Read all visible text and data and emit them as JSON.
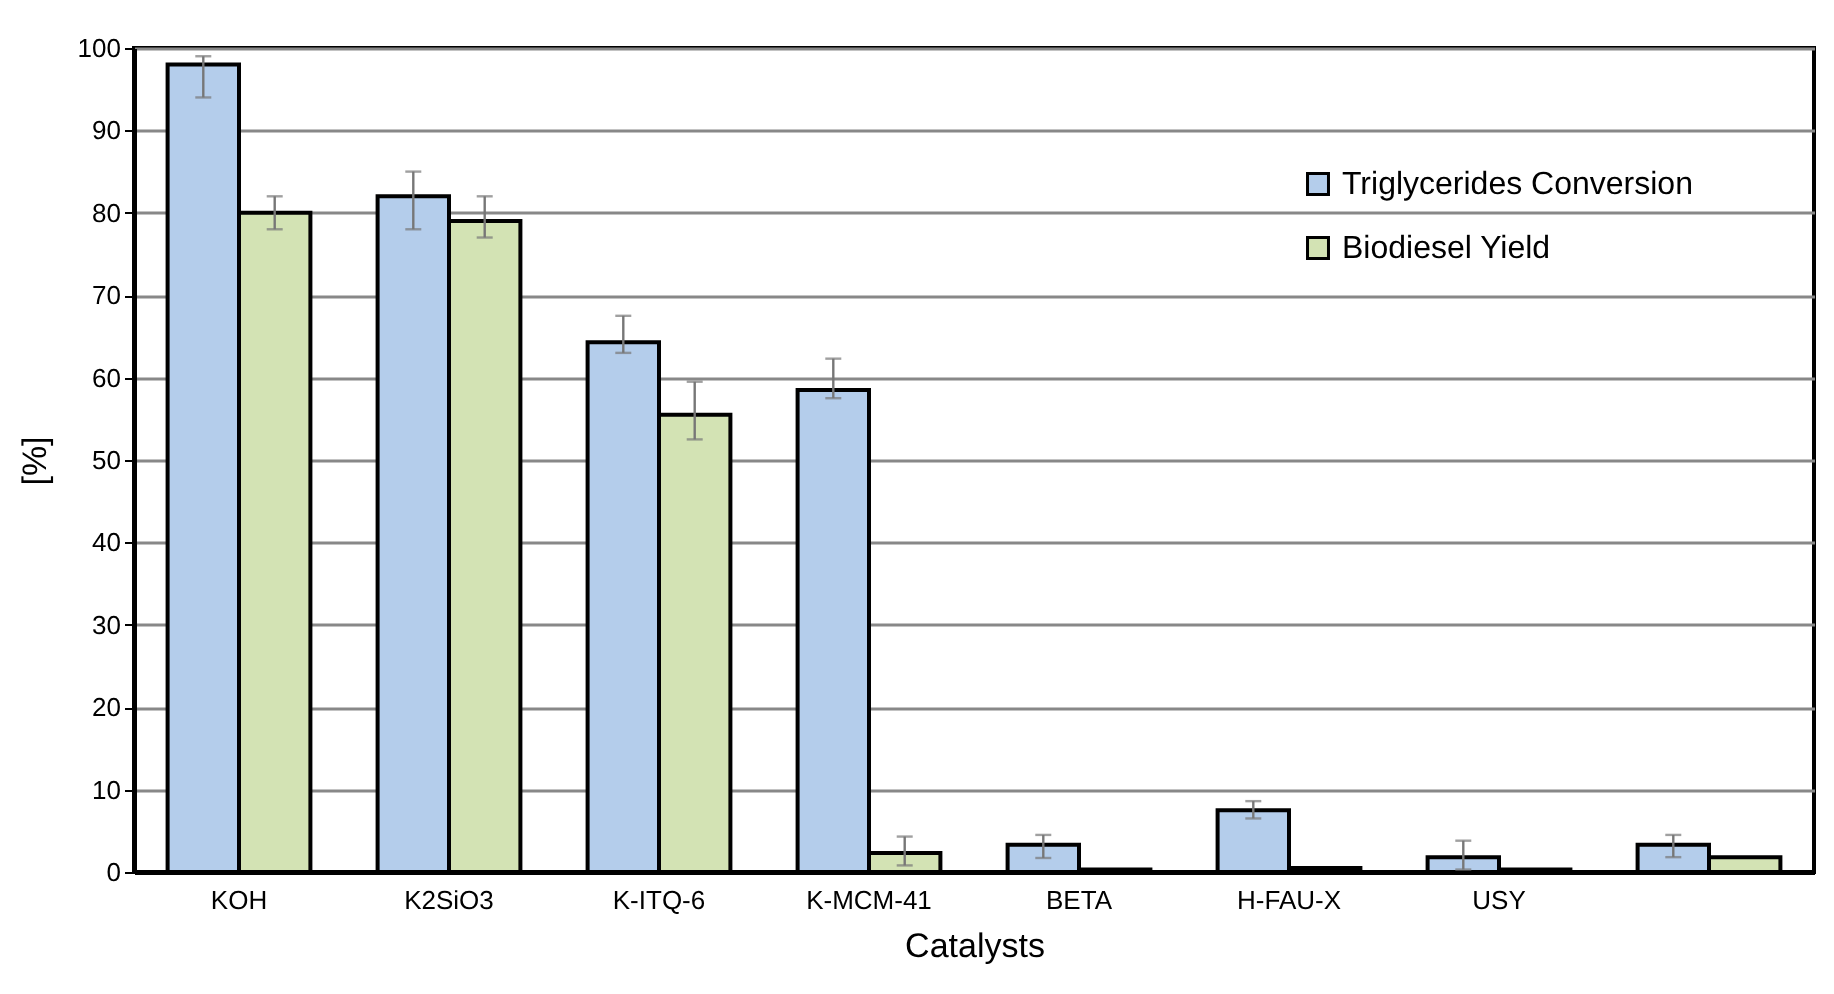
{
  "chart_data": {
    "type": "bar",
    "xlabel": "Catalysts",
    "ylabel": "[%]",
    "categories": [
      "KOH",
      "K2SiO3",
      "K-ITQ-6",
      "K-MCM-41",
      "BETA",
      "H-FAU-X",
      "USY",
      null
    ],
    "series": [
      {
        "name": "Triglycerides Conversion",
        "color": "#b4cdeb",
        "values": [
          98,
          82,
          64.3,
          58.5,
          3.3,
          7.5,
          1.8,
          3.3
        ],
        "errors": [
          [
            94,
            99
          ],
          [
            78,
            85
          ],
          [
            63,
            67.5
          ],
          [
            57.5,
            62.3
          ],
          [
            1.7,
            4.5
          ],
          [
            6.5,
            8.6
          ],
          [
            0.3,
            3.8
          ],
          [
            1.8,
            4.5
          ]
        ]
      },
      {
        "name": "Biodiesel Yield",
        "color": "#d3e3b4",
        "values": [
          80,
          79,
          55.5,
          2.3,
          0.3,
          0.5,
          0.3,
          1.8
        ],
        "errors": [
          [
            78,
            82
          ],
          [
            77,
            82
          ],
          [
            52.5,
            59.5
          ],
          [
            0.8,
            4.3
          ],
          null,
          null,
          null,
          null
        ]
      }
    ],
    "ylim": [
      0,
      100
    ],
    "yticks": [
      0,
      10,
      20,
      30,
      40,
      50,
      60,
      70,
      80,
      90,
      100
    ],
    "grid": "y",
    "legend": "top right"
  }
}
